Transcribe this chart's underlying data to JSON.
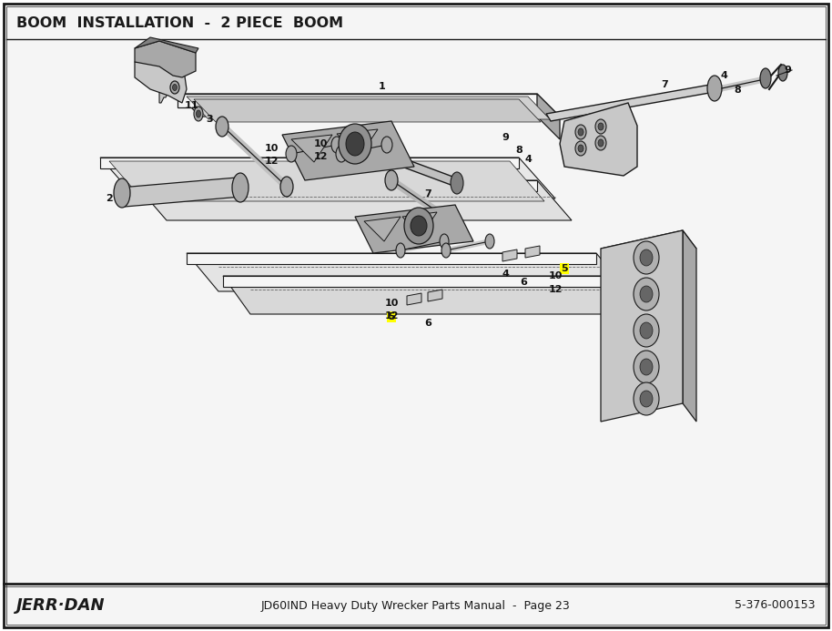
{
  "title": "BOOM  INSTALLATION  -  2 PIECE  BOOM",
  "footer_left": "JERR·DAN",
  "footer_center": "JD60IND Heavy Duty Wrecker Parts Manual  -  Page 23",
  "footer_right": "5-376-000153",
  "bg_color": "#ffffff",
  "border_color": "#000000",
  "title_fontsize": 11.5,
  "footer_fontsize": 9,
  "footer_logo_fontsize": 13,
  "label_fontsize": 8,
  "highlight_color": "#ffff00",
  "dark": "#1a1a1a",
  "gray1": "#c8c8c8",
  "gray2": "#a8a8a8",
  "gray3": "#808080",
  "white": "#f5f5f5",
  "line_color": "#2a2a2a"
}
